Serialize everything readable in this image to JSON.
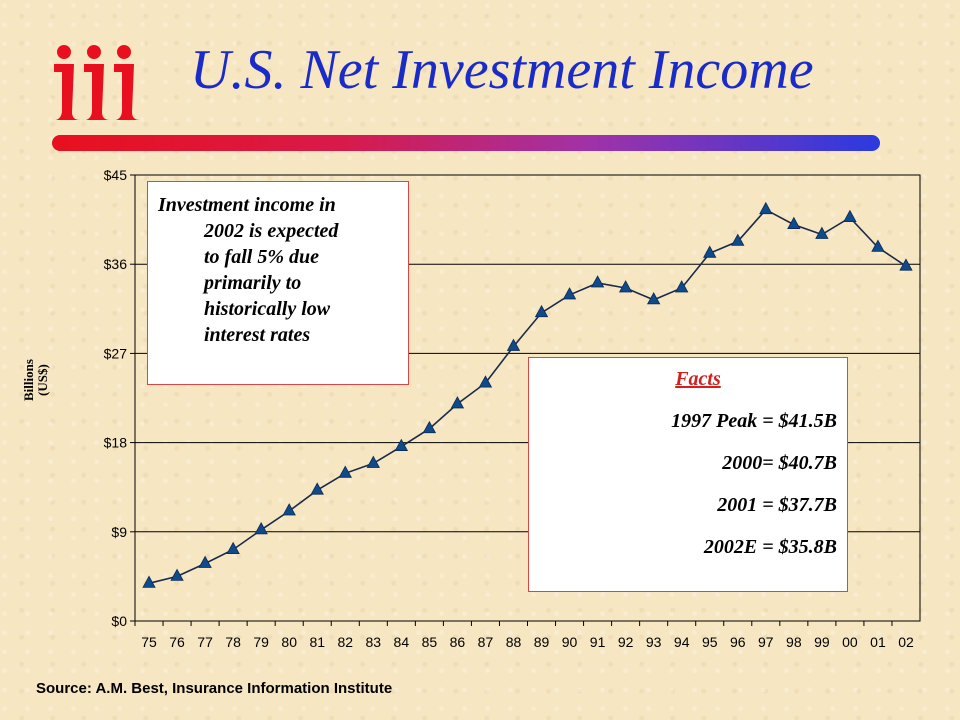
{
  "logo_text": "iii",
  "colors": {
    "title": "#1a2bc8",
    "logo": "#e8101e",
    "line": "#1b2a4a",
    "marker": "#0f4a8a",
    "box_border": "#d44444",
    "facts_heading": "#d41f1f"
  },
  "slide": {
    "title": "U.S. Net Investment Income",
    "source": "Source:  A.M. Best, Insurance Information Institute"
  },
  "note": {
    "lines": [
      "Investment income in",
      "2002 is expected",
      "to fall 5% due",
      "primarily to",
      "historically low",
      "interest rates"
    ]
  },
  "facts": {
    "heading": "Facts",
    "items": [
      "1997 Peak = $41.5B",
      "2000= $40.7B",
      "2001 = $37.7B",
      "2002E = $35.8B"
    ]
  },
  "chart_data": {
    "type": "line",
    "ylabel_lines": [
      "Billions",
      "(US$)"
    ],
    "ylim": [
      0,
      45
    ],
    "yticks": [
      0,
      9,
      18,
      27,
      36,
      45
    ],
    "ytick_labels": [
      "$0",
      "$9",
      "$18",
      "$27",
      "$36",
      "$45"
    ],
    "grid": true,
    "categories": [
      "75",
      "76",
      "77",
      "78",
      "79",
      "80",
      "81",
      "82",
      "83",
      "84",
      "85",
      "86",
      "87",
      "88",
      "89",
      "90",
      "91",
      "92",
      "93",
      "94",
      "95",
      "96",
      "97",
      "98",
      "99",
      "00",
      "01",
      "02"
    ],
    "series": [
      {
        "marker": "triangle",
        "values": [
          3.8,
          4.5,
          5.8,
          7.2,
          9.2,
          11.1,
          13.2,
          14.9,
          15.9,
          17.6,
          19.4,
          21.9,
          24.0,
          27.7,
          31.1,
          32.9,
          34.1,
          33.6,
          32.4,
          33.6,
          37.1,
          38.3,
          41.5,
          40.0,
          39.0,
          40.7,
          37.7,
          35.8
        ]
      }
    ]
  }
}
